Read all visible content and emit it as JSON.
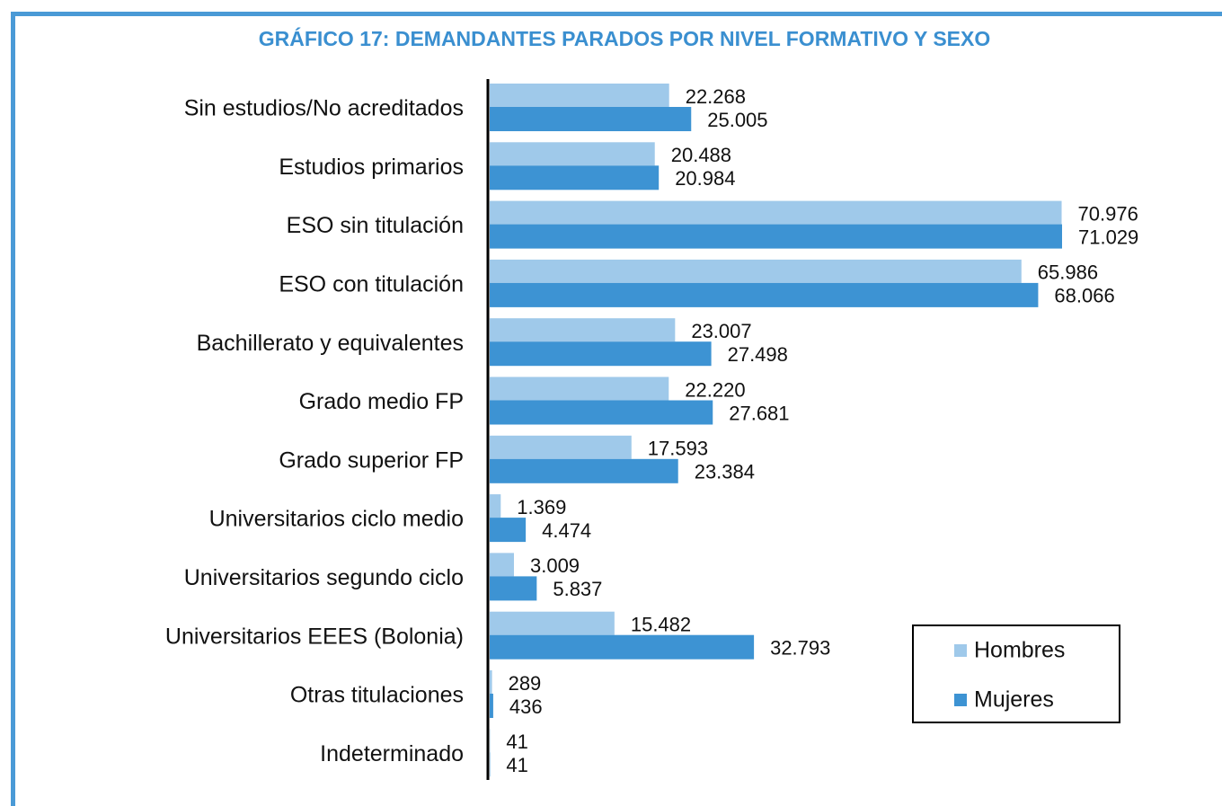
{
  "chart_data": {
    "type": "hbar",
    "title": "GRÁFICO 17: DEMANDANTES PARADOS POR NIVEL FORMATIVO Y SEXO",
    "categories": [
      "Sin estudios/No acreditados",
      "Estudios primarios",
      "ESO sin titulación",
      "ESO con titulación",
      "Bachillerato y equivalentes",
      "Grado medio FP",
      "Grado superior FP",
      "Universitarios ciclo medio",
      "Universitarios segundo ciclo",
      "Universitarios EEES (Bolonia)",
      "Otras titulaciones",
      "Indeterminado"
    ],
    "series": [
      {
        "name": "Hombres",
        "color": "#9fc9ea",
        "values": [
          22268,
          20488,
          70976,
          65986,
          23007,
          22220,
          17593,
          1369,
          3009,
          15482,
          289,
          41
        ],
        "value_labels": [
          "22.268",
          "20.488",
          "70.976",
          "65.986",
          "23.007",
          "22.220",
          "17.593",
          "1.369",
          "3.009",
          "15.482",
          "289",
          "41"
        ]
      },
      {
        "name": "Mujeres",
        "color": "#3d93d3",
        "values": [
          25005,
          20984,
          71029,
          68066,
          27498,
          27681,
          23384,
          4474,
          5837,
          32793,
          436,
          41
        ],
        "value_labels": [
          "25.005",
          "20.984",
          "71.029",
          "68.066",
          "27.498",
          "27.681",
          "23.384",
          "4.474",
          "5.837",
          "32.793",
          "436",
          "41"
        ]
      }
    ],
    "legend": "lower right"
  }
}
